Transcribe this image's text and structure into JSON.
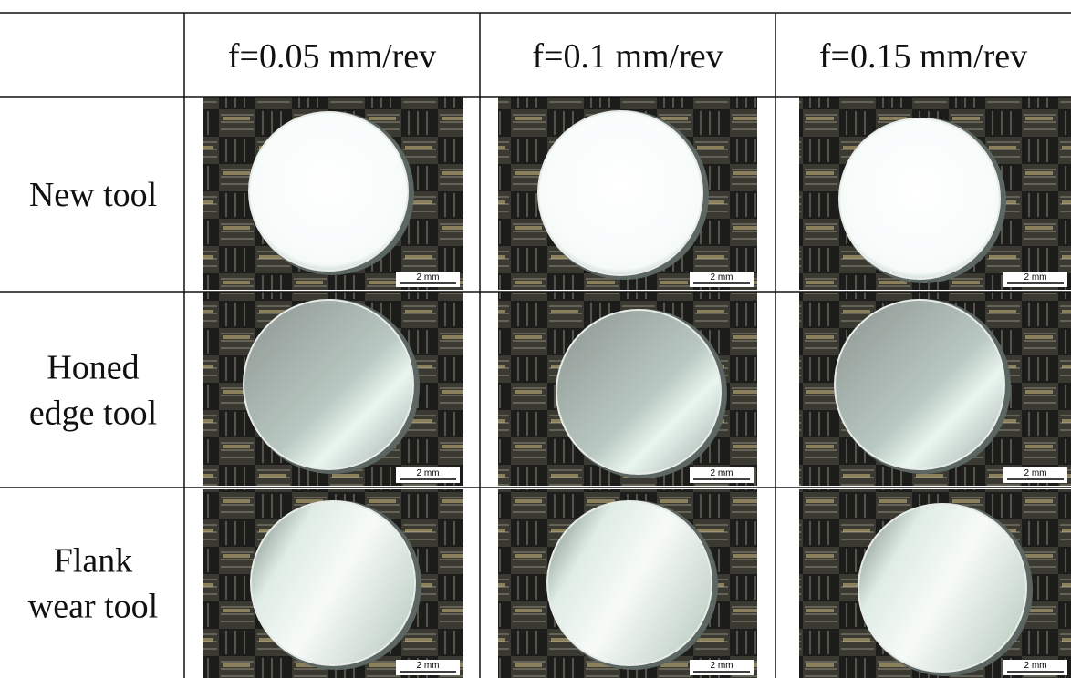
{
  "table": {
    "columns": [
      "f=0.05 mm/rev",
      "f=0.1 mm/rev",
      "f=0.15 mm/rev"
    ],
    "rows": [
      {
        "label_lines": [
          "New tool"
        ],
        "images": [
          {
            "scale_bar": "2 mm"
          },
          {
            "scale_bar": "2 mm"
          },
          {
            "scale_bar": "2 mm"
          }
        ]
      },
      {
        "label_lines": [
          "Honed",
          "edge tool"
        ],
        "images": [
          {
            "scale_bar": "2 mm"
          },
          {
            "scale_bar": "2 mm"
          },
          {
            "scale_bar": "2 mm"
          }
        ]
      },
      {
        "label_lines": [
          "Flank",
          "wear tool"
        ],
        "images": [
          {
            "scale_bar": "2 mm"
          },
          {
            "scale_bar": "2 mm"
          },
          {
            "scale_bar": "2 mm"
          }
        ]
      }
    ]
  }
}
